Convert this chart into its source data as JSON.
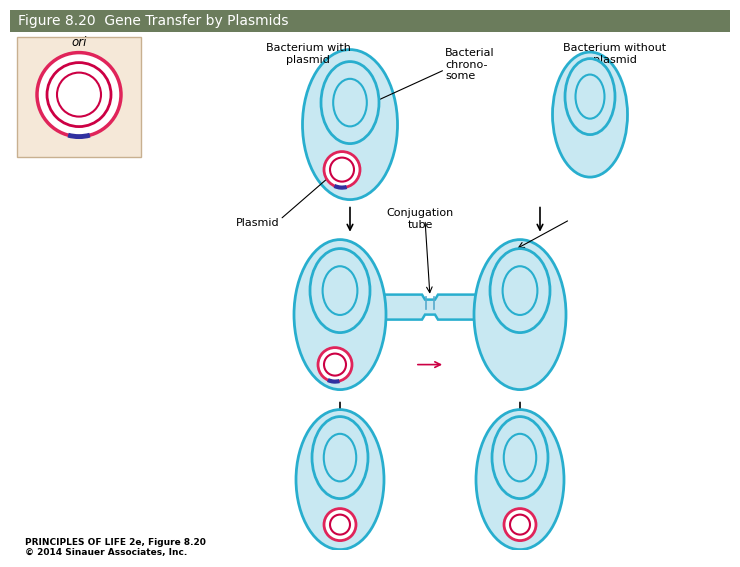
{
  "title": "Figure 8.20  Gene Transfer by Plasmids",
  "title_bg": "#6b7c5c",
  "title_color": "white",
  "title_fontsize": 10,
  "bg_color": "white",
  "bacterium_fill": "#c8e8f2",
  "bacterium_edge": "#28aece",
  "plasmid_fill": "white",
  "plasmid_outer_edge": "#e0245a",
  "plasmid_inner_edge": "#cc0044",
  "ori_color": "#3030a0",
  "label_fontsize": 8,
  "footer_text": "PRINCIPLES OF LIFE 2e, Figure 8.20\n© 2014 Sinauer Associates, Inc.",
  "footer_fontsize": 6.5,
  "inset_bg": "#f5e8d8",
  "inset_edge": "#c8b090"
}
